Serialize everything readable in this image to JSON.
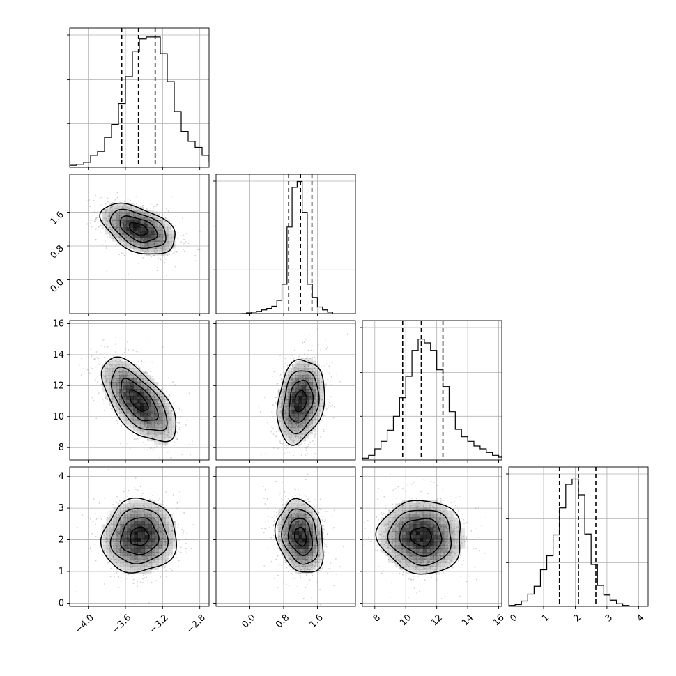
{
  "chart_data": {
    "type": "corner",
    "title": "",
    "grid": true,
    "parameters": [
      {
        "index": 0,
        "range": [
          -4.2,
          -2.7
        ],
        "ticks": [
          -4.0,
          -3.6,
          -3.2,
          -2.8
        ],
        "tick_labels": [
          "−4.0",
          "−3.6",
          "−3.2",
          "−2.8"
        ],
        "quantiles": [
          -3.64,
          -3.46,
          -3.28
        ]
      },
      {
        "index": 1,
        "range": [
          -0.8,
          2.5
        ],
        "ticks": [
          0.0,
          0.8,
          1.6
        ],
        "tick_labels": [
          "0.0",
          "0.8",
          "1.6"
        ],
        "quantiles": [
          0.92,
          1.2,
          1.47
        ]
      },
      {
        "index": 2,
        "range": [
          7.2,
          16.2
        ],
        "ticks": [
          8,
          10,
          12,
          14,
          16
        ],
        "tick_labels": [
          "8",
          "10",
          "12",
          "14",
          "16"
        ],
        "quantiles": [
          9.8,
          11.0,
          12.4
        ]
      },
      {
        "index": 3,
        "range": [
          -0.1,
          4.3
        ],
        "ticks": [
          0,
          1,
          2,
          3,
          4
        ],
        "tick_labels": [
          "0",
          "1",
          "2",
          "3",
          "4"
        ],
        "quantiles": [
          1.5,
          2.1,
          2.65
        ]
      }
    ],
    "histograms": [
      {
        "param": 0,
        "edges_start": -4.2,
        "bin_width": 0.075,
        "counts": [
          2,
          3,
          5,
          12,
          16,
          30,
          43,
          64,
          91,
          116,
          129,
          131,
          131,
          114,
          86,
          56,
          36,
          26,
          20,
          12,
          6,
          3,
          1,
          0
        ],
        "ymax": 140
      },
      {
        "param": 1,
        "edges_start": -0.2,
        "bin_width": 0.12,
        "counts": [
          0,
          1,
          2,
          3,
          5,
          7,
          10,
          18,
          40,
          118,
          172,
          180,
          138,
          40,
          22,
          9,
          5,
          2
        ],
        "ymax": 190
      },
      {
        "param": 2,
        "edges_start": 7.2,
        "bin_width": 0.4,
        "counts": [
          2,
          5,
          12,
          20,
          32,
          47,
          67,
          90,
          118,
          130,
          126,
          118,
          97,
          79,
          52,
          33,
          25,
          20,
          15,
          12,
          8,
          5,
          3
        ],
        "ymax": 150
      },
      {
        "param": 3,
        "edges_start": -0.1,
        "bin_width": 0.2,
        "counts": [
          1,
          2,
          6,
          14,
          23,
          42,
          58,
          82,
          113,
          140,
          146,
          128,
          83,
          48,
          24,
          13,
          7,
          3,
          1,
          0,
          0,
          0
        ],
        "ymax": 160
      }
    ],
    "pairs": [
      {
        "x": 0,
        "y": 1,
        "center": [
          -3.46,
          1.2
        ],
        "sd": [
          0.2,
          0.3
        ],
        "rho": -0.45
      },
      {
        "x": 0,
        "y": 2,
        "center": [
          -3.46,
          11.0
        ],
        "sd": [
          0.2,
          1.35
        ],
        "rho": -0.62
      },
      {
        "x": 1,
        "y": 2,
        "center": [
          1.2,
          11.0
        ],
        "sd": [
          0.28,
          1.35
        ],
        "rho": 0.22
      },
      {
        "x": 0,
        "y": 3,
        "center": [
          -3.45,
          2.1
        ],
        "sd": [
          0.2,
          0.58
        ],
        "rho": 0.05
      },
      {
        "x": 1,
        "y": 3,
        "center": [
          1.2,
          2.1
        ],
        "sd": [
          0.28,
          0.58
        ],
        "rho": -0.2
      },
      {
        "x": 2,
        "y": 3,
        "center": [
          11.0,
          2.1
        ],
        "sd": [
          1.35,
          0.58
        ],
        "rho": -0.05
      }
    ],
    "colors": {
      "hist": "#000000",
      "points": "#808080",
      "contour": "#000000",
      "density": "#000000"
    }
  }
}
